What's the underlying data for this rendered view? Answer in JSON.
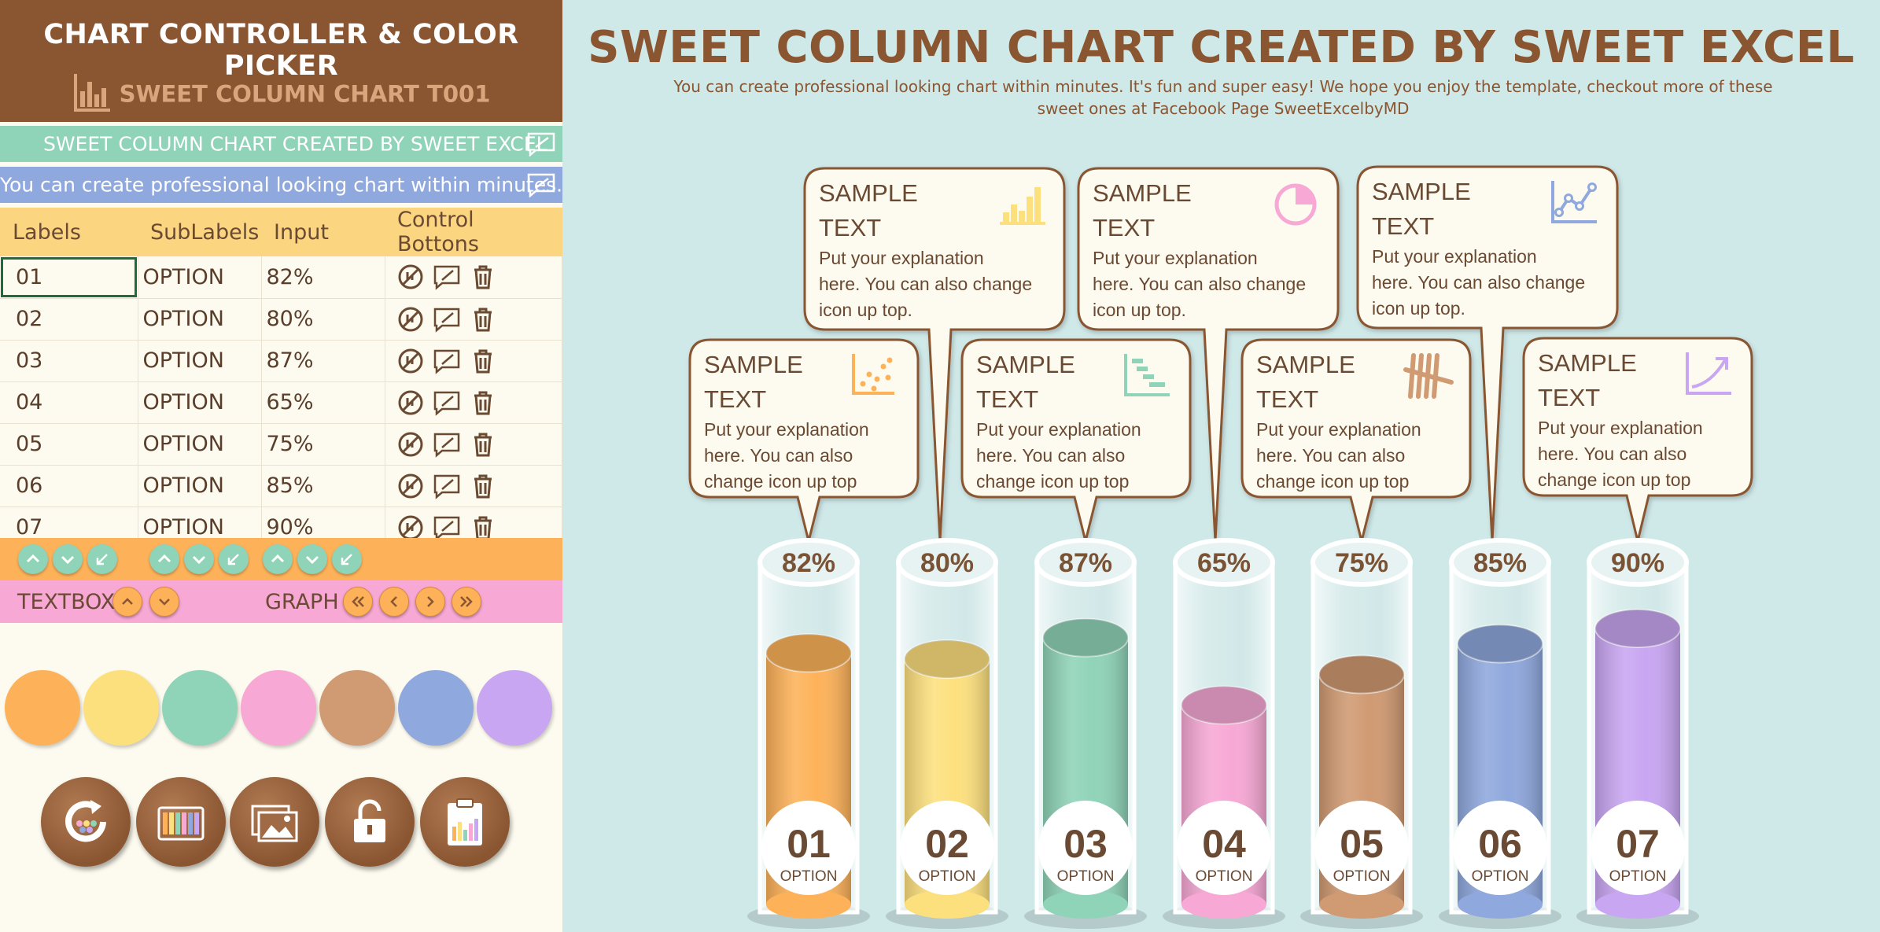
{
  "panel": {
    "title": "CHART CONTROLLER & COLOR PICKER",
    "subtitle": "SWEET COLUMN CHART T001",
    "title_input": "SWEET COLUMN CHART CREATED BY SWEET EXCEL",
    "desc_input": "You can create professional looking chart within minutes."
  },
  "table": {
    "headers": [
      "Labels",
      "SubLabels",
      "Input",
      "Control Bottons"
    ],
    "rows": [
      {
        "label": "01",
        "sub": "OPTION",
        "input": "82%"
      },
      {
        "label": "02",
        "sub": "OPTION",
        "input": "80%"
      },
      {
        "label": "03",
        "sub": "OPTION",
        "input": "87%"
      },
      {
        "label": "04",
        "sub": "OPTION",
        "input": "65%"
      },
      {
        "label": "05",
        "sub": "OPTION",
        "input": "75%"
      },
      {
        "label": "06",
        "sub": "OPTION",
        "input": "85%"
      },
      {
        "label": "07",
        "sub": "OPTION",
        "input": "90%"
      }
    ]
  },
  "controls": {
    "textbox_label": "TEXTBOX",
    "graph_label": "GRAPH"
  },
  "swatches": [
    "#fdb259",
    "#fde07e",
    "#8fd3b8",
    "#f7a8d5",
    "#d09a72",
    "#8fa8dd",
    "#c9a6f2"
  ],
  "big_buttons": [
    "refresh-colors-icon",
    "color-palette-icon",
    "image-icon",
    "unlock-icon",
    "clipboard-icon"
  ],
  "chart": {
    "title": "SWEET COLUMN CHART CREATED BY SWEET EXCEL",
    "description": "You can create professional looking chart within minutes. It's fun and super easy! We hope you enjoy the template, checkout more of these sweet ones at Facebook Page SweetExcelbyMD"
  },
  "callouts": [
    {
      "title1": "SAMPLE",
      "title2": "TEXT",
      "body": [
        "Put your explanation",
        "here. You can also",
        "change icon up top"
      ],
      "icon": "scatter-icon",
      "color": "#fdb259"
    },
    {
      "title1": "SAMPLE",
      "title2": "TEXT",
      "body": [
        "Put your explanation",
        "here. You can also change",
        "icon up top."
      ],
      "icon": "bar-chart-icon",
      "color": "#fde07e"
    },
    {
      "title1": "SAMPLE",
      "title2": "TEXT",
      "body": [
        "Put your explanation",
        "here. You can also",
        "change icon up top"
      ],
      "icon": "waterfall-icon",
      "color": "#8fd3b8"
    },
    {
      "title1": "SAMPLE",
      "title2": "TEXT",
      "body": [
        "Put your explanation",
        "here. You can also change",
        "icon up top."
      ],
      "icon": "pie-icon",
      "color": "#f7a8d5"
    },
    {
      "title1": "SAMPLE",
      "title2": "TEXT",
      "body": [
        "Put your explanation",
        "here. You can also",
        "change icon up top"
      ],
      "icon": "tally-icon",
      "color": "#d09a72"
    },
    {
      "title1": "SAMPLE",
      "title2": "TEXT",
      "body": [
        "Put your explanation",
        "here. You can also change",
        "icon up top."
      ],
      "icon": "line-chart-icon",
      "color": "#8fa8dd"
    },
    {
      "title1": "SAMPLE",
      "title2": "TEXT",
      "body": [
        "Put your explanation",
        "here. You can also",
        "change icon up top"
      ],
      "icon": "trend-icon",
      "color": "#c9a6f2"
    }
  ],
  "chart_data": {
    "type": "bar",
    "categories": [
      "01",
      "02",
      "03",
      "04",
      "05",
      "06",
      "07"
    ],
    "sublabels": [
      "OPTION",
      "OPTION",
      "OPTION",
      "OPTION",
      "OPTION",
      "OPTION",
      "OPTION"
    ],
    "values": [
      82,
      80,
      87,
      65,
      75,
      85,
      90
    ],
    "value_labels": [
      "82%",
      "80%",
      "87%",
      "65%",
      "75%",
      "85%",
      "90%"
    ],
    "colors": [
      "#fdb259",
      "#fde07e",
      "#8fd3b8",
      "#f7a8d5",
      "#d09a72",
      "#8fa8dd",
      "#c9a6f2"
    ],
    "ylim": [
      0,
      100
    ],
    "title": "SWEET COLUMN CHART CREATED BY SWEET EXCEL"
  }
}
